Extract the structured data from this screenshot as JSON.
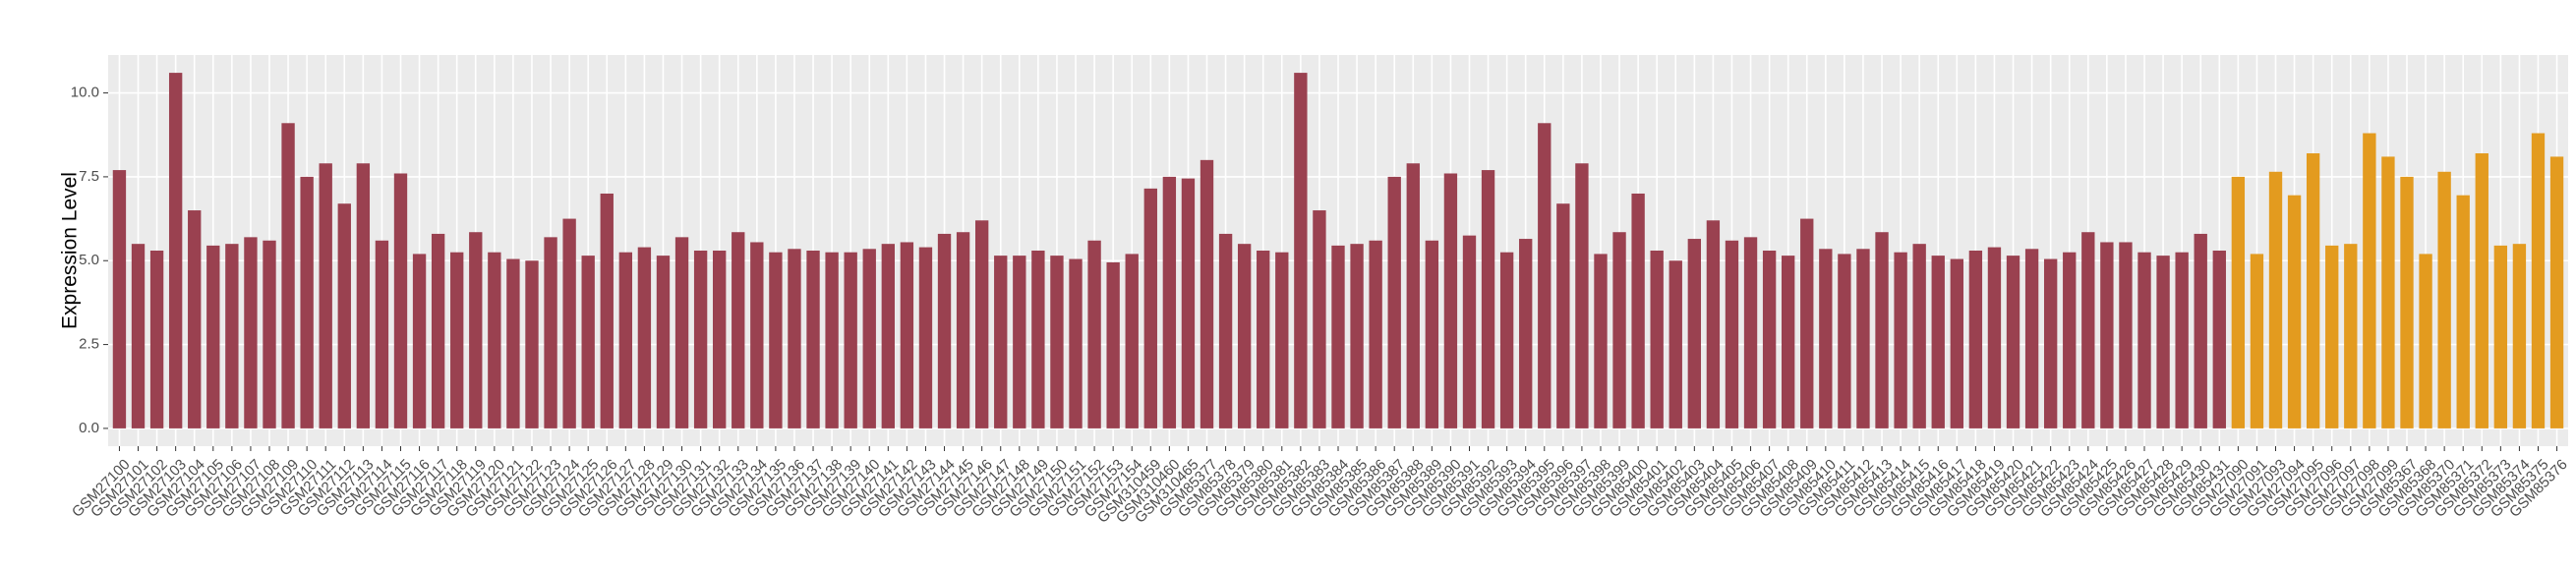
{
  "chart_data": {
    "type": "bar",
    "y_label": "Expression Level",
    "categories": [
      "GSM27100",
      "GSM27101",
      "GSM27102",
      "GSM27103",
      "GSM27104",
      "GSM27105",
      "GSM27106",
      "GSM27107",
      "GSM27108",
      "GSM27109",
      "GSM27110",
      "GSM27111",
      "GSM27112",
      "GSM27113",
      "GSM27114",
      "GSM27115",
      "GSM27116",
      "GSM27117",
      "GSM27118",
      "GSM27119",
      "GSM27120",
      "GSM27121",
      "GSM27122",
      "GSM27123",
      "GSM27124",
      "GSM27125",
      "GSM27126",
      "GSM27127",
      "GSM27128",
      "GSM27129",
      "GSM27130",
      "GSM27131",
      "GSM27132",
      "GSM27133",
      "GSM27134",
      "GSM27135",
      "GSM27136",
      "GSM27137",
      "GSM27138",
      "GSM27139",
      "GSM27140",
      "GSM27141",
      "GSM27142",
      "GSM27143",
      "GSM27144",
      "GSM27145",
      "GSM27146",
      "GSM27147",
      "GSM27148",
      "GSM27149",
      "GSM27150",
      "GSM27151",
      "GSM27152",
      "GSM27153",
      "GSM27154",
      "GSM310459",
      "GSM310460",
      "GSM310465",
      "GSM85377",
      "GSM85378",
      "GSM85379",
      "GSM85380",
      "GSM85381",
      "GSM85382",
      "GSM85383",
      "GSM85384",
      "GSM85385",
      "GSM85386",
      "GSM85387",
      "GSM85388",
      "GSM85389",
      "GSM85390",
      "GSM85391",
      "GSM85392",
      "GSM85393",
      "GSM85394",
      "GSM85395",
      "GSM85396",
      "GSM85397",
      "GSM85398",
      "GSM85399",
      "GSM85400",
      "GSM85401",
      "GSM85402",
      "GSM85403",
      "GSM85404",
      "GSM85405",
      "GSM85406",
      "GSM85407",
      "GSM85408",
      "GSM85409",
      "GSM85410",
      "GSM85411",
      "GSM85412",
      "GSM85413",
      "GSM85414",
      "GSM85415",
      "GSM85416",
      "GSM85417",
      "GSM85418",
      "GSM85419",
      "GSM85420",
      "GSM85421",
      "GSM85422",
      "GSM85423",
      "GSM85424",
      "GSM85425",
      "GSM85426",
      "GSM85427",
      "GSM85428",
      "GSM85429",
      "GSM85430",
      "GSM85431",
      "GSM27090",
      "GSM27091",
      "GSM27093",
      "GSM27094",
      "GSM27095",
      "GSM27096",
      "GSM27097",
      "GSM27098",
      "GSM27099",
      "GSM85367",
      "GSM85368",
      "GSM85370",
      "GSM85371",
      "GSM85372",
      "GSM85373",
      "GSM85374",
      "GSM85375",
      "GSM85376"
    ],
    "series": [
      {
        "color": "#9a4150",
        "values": [
          7.7,
          5.5,
          5.3,
          10.6,
          6.5,
          5.45,
          5.5,
          5.7,
          5.6,
          9.1,
          7.5,
          7.9,
          6.7,
          7.9,
          5.6,
          7.6,
          5.2,
          5.8,
          5.25,
          5.85,
          5.25,
          5.05,
          5.0,
          5.7,
          6.25,
          5.15,
          7.0,
          5.25,
          5.4,
          5.15,
          5.7,
          5.3,
          5.3,
          5.85,
          5.55,
          5.25,
          5.35,
          5.3,
          5.25,
          5.25,
          5.35,
          5.5,
          5.55,
          5.4,
          5.8,
          5.85,
          6.2,
          5.15,
          5.15,
          5.3,
          5.15,
          5.05,
          5.6,
          4.95,
          5.2,
          7.15,
          7.5,
          7.45,
          8.0,
          5.8,
          5.5,
          5.3,
          5.25,
          10.6,
          6.5,
          5.45,
          5.5,
          5.6,
          7.5,
          7.9,
          5.6,
          7.6,
          5.75,
          7.7,
          5.25,
          5.65,
          9.1,
          6.7,
          7.9,
          5.2,
          5.85,
          7.0,
          5.3,
          5.0,
          5.65,
          6.2,
          5.6,
          5.7,
          5.3,
          5.15,
          6.25,
          5.35,
          5.2,
          5.35,
          5.85,
          5.25,
          5.5,
          5.15,
          5.05,
          5.3,
          5.4,
          5.15,
          5.35,
          5.05,
          5.25,
          5.85,
          5.55,
          5.55,
          5.25,
          5.15,
          5.25,
          5.8,
          5.3,
          null,
          null,
          null,
          null,
          null,
          null,
          null,
          null,
          null,
          null,
          null,
          null,
          null,
          null,
          null,
          null,
          null,
          null
        ]
      },
      {
        "color": "#e39b1f",
        "values": [
          null,
          null,
          null,
          null,
          null,
          null,
          null,
          null,
          null,
          null,
          null,
          null,
          null,
          null,
          null,
          null,
          null,
          null,
          null,
          null,
          null,
          null,
          null,
          null,
          null,
          null,
          null,
          null,
          null,
          null,
          null,
          null,
          null,
          null,
          null,
          null,
          null,
          null,
          null,
          null,
          null,
          null,
          null,
          null,
          null,
          null,
          null,
          null,
          null,
          null,
          null,
          null,
          null,
          null,
          null,
          null,
          null,
          null,
          null,
          null,
          null,
          null,
          null,
          null,
          null,
          null,
          null,
          null,
          null,
          null,
          null,
          null,
          null,
          null,
          null,
          null,
          null,
          null,
          null,
          null,
          null,
          null,
          null,
          null,
          null,
          null,
          null,
          null,
          null,
          null,
          null,
          null,
          null,
          null,
          null,
          null,
          null,
          null,
          null,
          null,
          null,
          null,
          null,
          null,
          null,
          null,
          null,
          null,
          null,
          null,
          null,
          null,
          null,
          7.5,
          5.2,
          7.65,
          6.95,
          8.2,
          5.45,
          5.5,
          8.8,
          8.1,
          7.5,
          5.2,
          7.65,
          6.95,
          8.2,
          5.45,
          5.5,
          8.8,
          8.1
        ]
      }
    ],
    "ylim": [
      -0.53,
      11.13
    ],
    "yticks": [
      {
        "value": 0,
        "label": "0.0"
      },
      {
        "value": 2.5,
        "label": "2.5"
      },
      {
        "value": 5,
        "label": "5.0"
      },
      {
        "value": 7.5,
        "label": "7.5"
      },
      {
        "value": 10,
        "label": "10.0"
      }
    ],
    "grid": true
  }
}
